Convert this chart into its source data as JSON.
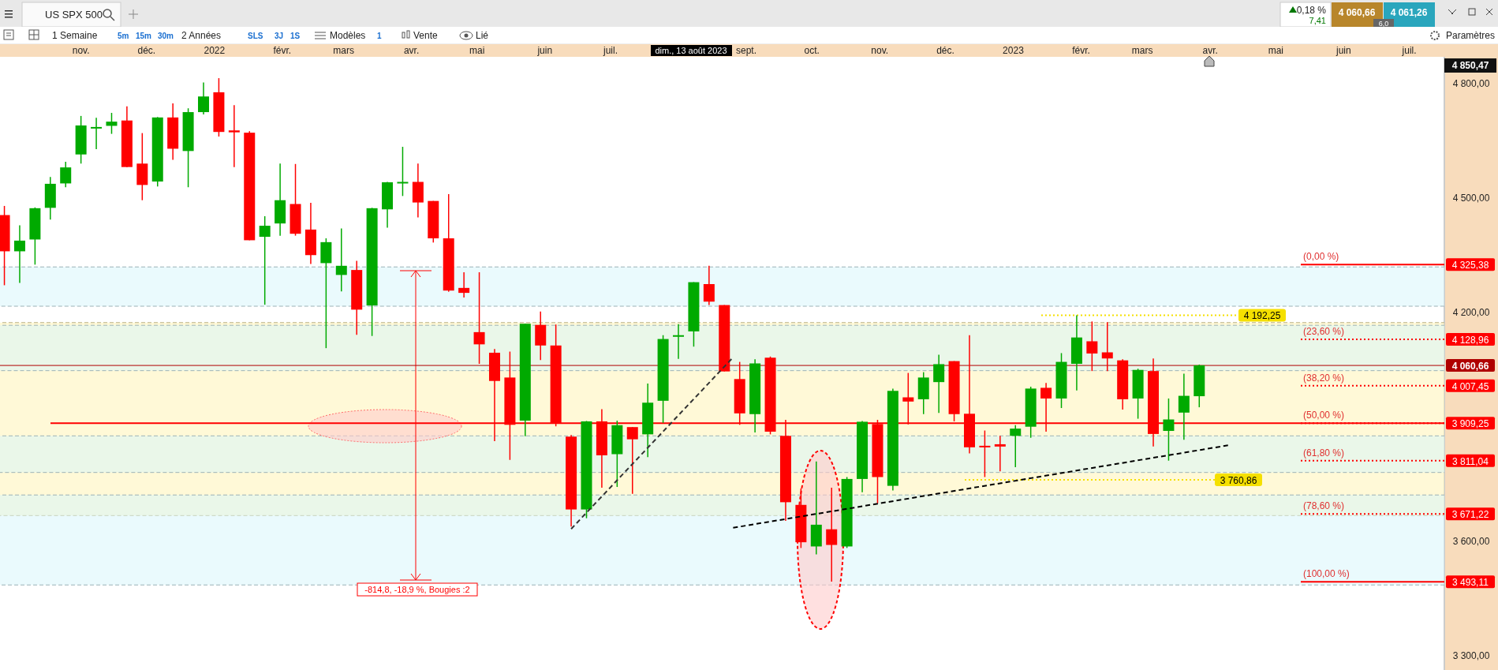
{
  "chart_data": {
    "type": "candlestick",
    "title": "US SPX 500",
    "annotations": [
      "0,18 %",
      "7,41",
      "4 060,66",
      "4 061,26",
      "6,0",
      "1 Semaine",
      "5m",
      "15m",
      "30m",
      "2 Années",
      "SLS",
      "3J",
      "1S",
      "Modèles",
      "1",
      "Vente",
      "Lié",
      "Paramètres",
      "dim., 13 août 2023",
      "4 850,47",
      "-814,8, -18,9 %, Bougies :2",
      {
        "text": "(0,00 %)",
        "y": 4325.38
      },
      {
        "text": "(23,60 %)",
        "y": 4128.96
      },
      {
        "text": "(38,20 %)",
        "y": 4007.45
      },
      {
        "text": "(50,00 %)",
        "y": 3909.25
      },
      {
        "text": "(61,80 %)",
        "y": 3811.04
      },
      {
        "text": "(78,60 %)",
        "y": 3671.22
      },
      {
        "text": "(100,00 %)",
        "y": 3493.11
      }
    ],
    "x": [
      "2021-09-27",
      "2021-10-04",
      "2021-10-11",
      "2021-10-18",
      "2021-10-25",
      "2021-11-01",
      "2021-11-08",
      "2021-11-15",
      "2021-11-22",
      "2021-11-29",
      "2021-12-06",
      "2021-12-13",
      "2021-12-20",
      "2021-12-27",
      "2022-01-03",
      "2022-01-10",
      "2022-01-17",
      "2022-01-24",
      "2022-01-31",
      "2022-02-07",
      "2022-02-14",
      "2022-02-21",
      "2022-02-28",
      "2022-03-07",
      "2022-03-14",
      "2022-03-21",
      "2022-03-28",
      "2022-04-04",
      "2022-04-11",
      "2022-04-18",
      "2022-04-25",
      "2022-05-02",
      "2022-05-09",
      "2022-05-16",
      "2022-05-23",
      "2022-05-30",
      "2022-06-06",
      "2022-06-13",
      "2022-06-20",
      "2022-06-27",
      "2022-07-04",
      "2022-07-11",
      "2022-07-18",
      "2022-07-25",
      "2022-08-01",
      "2022-08-08",
      "2022-08-15",
      "2022-08-22",
      "2022-08-29",
      "2022-09-05",
      "2022-09-12",
      "2022-09-19",
      "2022-09-26",
      "2022-10-03",
      "2022-10-10",
      "2022-10-17",
      "2022-10-24",
      "2022-10-31",
      "2022-11-07",
      "2022-11-14",
      "2022-11-21",
      "2022-11-28",
      "2022-12-05",
      "2022-12-12",
      "2022-12-19",
      "2022-12-26",
      "2023-01-02",
      "2023-01-09",
      "2023-01-16",
      "2023-01-23",
      "2023-01-30",
      "2023-02-06",
      "2023-02-13",
      "2023-02-20",
      "2023-02-27",
      "2023-03-06",
      "2023-03-13",
      "2023-03-20",
      "2023-03-27"
    ],
    "ohlc": [
      [
        4455,
        4479,
        4271,
        4360
      ],
      [
        4360,
        4428,
        4277,
        4388
      ],
      [
        4391,
        4475,
        4325,
        4473
      ],
      [
        4474,
        4555,
        4443,
        4537
      ],
      [
        4538,
        4595,
        4528,
        4580
      ],
      [
        4614,
        4715,
        4590,
        4690
      ],
      [
        4683,
        4710,
        4628,
        4686
      ],
      [
        4689,
        4723,
        4668,
        4700
      ],
      [
        4703,
        4740,
        4581,
        4581
      ],
      [
        4590,
        4670,
        4494,
        4534
      ],
      [
        4543,
        4712,
        4530,
        4711
      ],
      [
        4711,
        4748,
        4600,
        4629
      ],
      [
        4623,
        4735,
        4528,
        4725
      ],
      [
        4725,
        4803,
        4719,
        4766
      ],
      [
        4777,
        4814,
        4661,
        4673
      ],
      [
        4677,
        4743,
        4581,
        4672
      ],
      [
        4671,
        4675,
        4389,
        4389
      ],
      [
        4398,
        4452,
        4220,
        4427
      ],
      [
        4433,
        4590,
        4401,
        4494
      ],
      [
        4484,
        4589,
        4401,
        4406
      ],
      [
        4417,
        4487,
        4327,
        4350
      ],
      [
        4329,
        4394,
        4106,
        4384
      ],
      [
        4298,
        4420,
        4255,
        4322
      ],
      [
        4311,
        4335,
        4141,
        4207
      ],
      [
        4218,
        4474,
        4138,
        4473
      ],
      [
        4470,
        4542,
        4422,
        4541
      ],
      [
        4541,
        4634,
        4505,
        4542
      ],
      [
        4542,
        4590,
        4449,
        4488
      ],
      [
        4492,
        4492,
        4383,
        4394
      ],
      [
        4394,
        4510,
        4254,
        4257
      ],
      [
        4264,
        4305,
        4239,
        4251
      ],
      [
        4148,
        4305,
        4065,
        4116
      ],
      [
        4094,
        4104,
        3862,
        4020
      ],
      [
        4029,
        4097,
        3813,
        3905
      ],
      [
        3916,
        4170,
        3875,
        4170
      ],
      [
        4167,
        4202,
        4075,
        4113
      ],
      [
        4113,
        4168,
        3901,
        3910
      ],
      [
        3874,
        3878,
        3638,
        3683
      ],
      [
        3683,
        3915,
        3660,
        3914
      ],
      [
        3914,
        3946,
        3740,
        3825
      ],
      [
        3828,
        3916,
        3742,
        3904
      ],
      [
        3899,
        3899,
        3724,
        3867
      ],
      [
        3880,
        4013,
        3820,
        3963
      ],
      [
        3968,
        4140,
        3910,
        4130
      ],
      [
        4139,
        4169,
        4078,
        4140
      ],
      [
        4150,
        4279,
        4110,
        4279
      ],
      [
        4274,
        4322,
        4219,
        4228
      ],
      [
        4219,
        4219,
        4045,
        4045
      ],
      [
        4025,
        4070,
        3905,
        3935
      ],
      [
        3933,
        4077,
        3885,
        4066
      ],
      [
        4081,
        4084,
        3880,
        3887
      ],
      [
        3876,
        3918,
        3653,
        3702
      ],
      [
        3695,
        3738,
        3582,
        3597
      ],
      [
        3586,
        3809,
        3565,
        3643
      ],
      [
        3631,
        3740,
        3494,
        3590
      ],
      [
        3586,
        3768,
        3582,
        3763
      ],
      [
        3763,
        3915,
        3728,
        3913
      ],
      [
        3907,
        3918,
        3699,
        3768
      ],
      [
        3745,
        4000,
        3733,
        3994
      ],
      [
        3977,
        4041,
        3906,
        3966
      ],
      [
        3972,
        4043,
        3933,
        4029
      ],
      [
        4017,
        4089,
        3936,
        4064
      ],
      [
        4072,
        4072,
        3914,
        3933
      ],
      [
        3934,
        4140,
        3830,
        3846
      ],
      [
        3850,
        3890,
        3768,
        3846
      ],
      [
        3854,
        3876,
        3783,
        3848
      ],
      [
        3876,
        3904,
        3794,
        3895
      ],
      [
        3900,
        4005,
        3871,
        4000
      ],
      [
        4002,
        4015,
        3887,
        3974
      ],
      [
        3974,
        4093,
        3949,
        4070
      ],
      [
        4065,
        4192,
        3995,
        4134
      ],
      [
        4124,
        4176,
        4046,
        4092
      ],
      [
        4095,
        4174,
        4046,
        4079
      ],
      [
        4074,
        4077,
        3945,
        3972
      ],
      [
        3974,
        4052,
        3921,
        4049
      ],
      [
        4046,
        4079,
        3848,
        3881
      ],
      [
        3889,
        3974,
        3811,
        3919
      ],
      [
        3937,
        4039,
        3866,
        3981
      ],
      [
        3980,
        4063,
        3951,
        4061
      ]
    ],
    "colors": [
      "#ff0000",
      "#00aa00",
      "#00aa00",
      "#00aa00",
      "#00aa00",
      "#00aa00",
      "#00aa00",
      "#00aa00",
      "#ff0000",
      "#ff0000",
      "#00aa00",
      "#ff0000",
      "#00aa00",
      "#00aa00",
      "#ff0000",
      "#ff0000",
      "#ff0000",
      "#00aa00",
      "#00aa00",
      "#ff0000",
      "#ff0000",
      "#00aa00",
      "#00aa00",
      "#ff0000",
      "#00aa00",
      "#00aa00",
      "#00aa00",
      "#ff0000",
      "#ff0000",
      "#ff0000",
      "#ff0000",
      "#ff0000",
      "#ff0000",
      "#ff0000",
      "#00aa00",
      "#ff0000",
      "#ff0000",
      "#ff0000",
      "#00aa00",
      "#ff0000",
      "#00aa00",
      "#ff0000",
      "#00aa00",
      "#00aa00",
      "#00aa00",
      "#00aa00",
      "#ff0000",
      "#ff0000",
      "#ff0000",
      "#00aa00",
      "#ff0000",
      "#ff0000",
      "#ff0000",
      "#00aa00",
      "#ff0000",
      "#00aa00",
      "#00aa00",
      "#ff0000",
      "#00aa00",
      "#ff0000",
      "#00aa00",
      "#00aa00",
      "#ff0000",
      "#ff0000",
      "#ff0000",
      "#ff0000",
      "#00aa00",
      "#00aa00",
      "#ff0000",
      "#00aa00",
      "#00aa00",
      "#ff0000",
      "#ff0000",
      "#ff0000",
      "#00aa00",
      "#ff0000",
      "#00aa00",
      "#00aa00",
      "#00aa00"
    ],
    "series": [
      {
        "type": "line",
        "color": "#333333",
        "line_style": "dashed",
        "x": [
          "2022-06-13",
          "2022-08-26"
        ],
        "values": [
          3632,
          4082
        ]
      },
      {
        "type": "line",
        "color": "#000000",
        "line_style": "dashed",
        "x": [
          "2022-08-26",
          "2023-04-10"
        ],
        "values": [
          3635,
          3852
        ]
      }
    ],
    "bands": [
      {
        "axis": "y",
        "from": 3667,
        "to": 4173,
        "color": "#fff3b0"
      },
      {
        "axis": "y",
        "from": 4216,
        "to": 4319,
        "color": "#d6f6fc"
      },
      {
        "axis": "y",
        "from": 4047,
        "to": 4166,
        "color": "#d6f6fc"
      },
      {
        "axis": "y",
        "from": 3780,
        "to": 3876,
        "color": "#d6f6fc"
      },
      {
        "axis": "y",
        "from": 3485,
        "to": 3721,
        "color": "#d6f6fc"
      }
    ],
    "ref_lines": [
      {
        "axis": "y",
        "value": 4325.38,
        "label": "4 325,38",
        "color": "#ff0000",
        "line_style": "solid"
      },
      {
        "axis": "y",
        "value": 4128.96,
        "label": "4 128,96",
        "color": "#ff0000",
        "line_style": "dotted"
      },
      {
        "axis": "y",
        "value": 4007.45,
        "label": "4 007,45",
        "color": "#ff0000",
        "line_style": "dotted"
      },
      {
        "axis": "y",
        "value": 3909.25,
        "label": "3 909,25",
        "color": "#ff0000",
        "line_style": "dotted"
      },
      {
        "axis": "y",
        "value": 3811.04,
        "label": "3 811,04",
        "color": "#ff0000",
        "line_style": "dotted"
      },
      {
        "axis": "y",
        "value": 3671.22,
        "label": "3 671,22",
        "color": "#ff0000",
        "line_style": "dotted"
      },
      {
        "axis": "y",
        "value": 3493.11,
        "label": "3 493,11",
        "color": "#ff0000",
        "line_style": "solid"
      },
      {
        "axis": "y",
        "value": 3909.25,
        "color": "#ff0000",
        "line_style": "solid"
      },
      {
        "axis": "y",
        "value": 4060.66,
        "label": "4 060,66",
        "color": "#b00000",
        "line_style": "solid"
      },
      {
        "axis": "y",
        "value": 4192.25,
        "label": "4 192,25",
        "color": "#f5e000",
        "line_style": "dotted"
      },
      {
        "axis": "y",
        "value": 3760.86,
        "label": "3 760,86",
        "color": "#f5e000",
        "line_style": "dotted"
      }
    ],
    "xlim": [
      "2021-09-25",
      "2023-07-17"
    ],
    "xticks": [
      {
        "value": "2021-11-01",
        "label": "nov."
      },
      {
        "value": "2021-12-01",
        "label": "déc."
      },
      {
        "value": "2022-01-01",
        "label": "2022"
      },
      {
        "value": "2022-02-01",
        "label": "févr."
      },
      {
        "value": "2022-03-01",
        "label": "mars"
      },
      {
        "value": "2022-04-01",
        "label": "avr."
      },
      {
        "value": "2022-05-01",
        "label": "mai"
      },
      {
        "value": "2022-06-01",
        "label": "juin"
      },
      {
        "value": "2022-07-01",
        "label": "juil."
      },
      {
        "value": "2022-09-01",
        "label": "sept."
      },
      {
        "value": "2022-10-01",
        "label": "oct."
      },
      {
        "value": "2022-11-01",
        "label": "nov."
      },
      {
        "value": "2022-12-01",
        "label": "déc."
      },
      {
        "value": "2023-01-01",
        "label": "2023"
      },
      {
        "value": "2023-02-01",
        "label": "févr."
      },
      {
        "value": "2023-03-01",
        "label": "mars"
      },
      {
        "value": "2023-04-01",
        "label": "avr."
      },
      {
        "value": "2023-05-01",
        "label": "mai"
      },
      {
        "value": "2023-06-01",
        "label": "juin"
      },
      {
        "value": "2023-07-01",
        "label": "juil."
      }
    ],
    "ylim": [
      3262,
      4870
    ],
    "yticks": [
      {
        "value": 3300,
        "label": "3 300,00"
      },
      {
        "value": 3600,
        "label": "3 600,00"
      },
      {
        "value": 4200,
        "label": "4 200,00"
      },
      {
        "value": 4500,
        "label": "4 500,00"
      },
      {
        "value": 4800,
        "label": "4 800,00"
      }
    ]
  }
}
